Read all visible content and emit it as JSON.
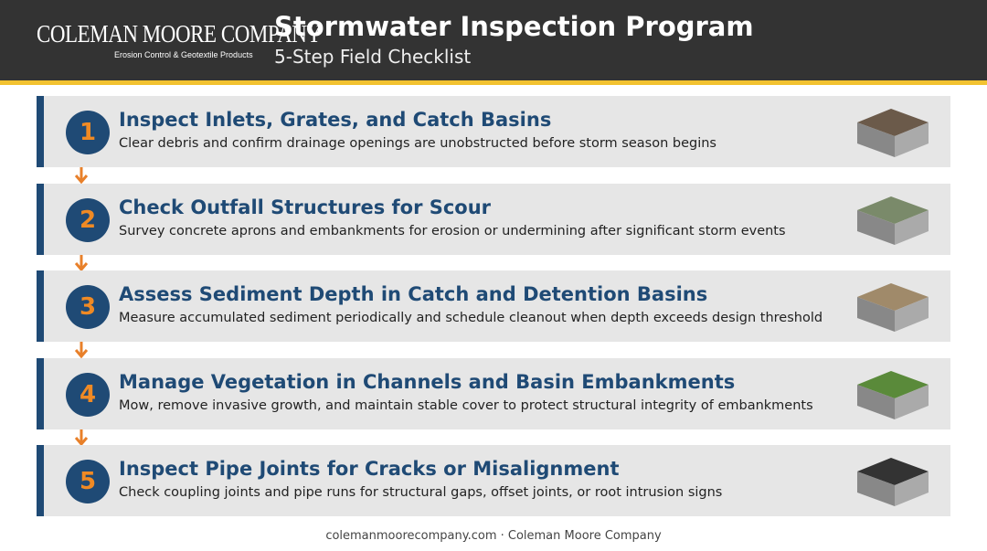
{
  "header": {
    "brand": "COLEMAN MOORE COMPANY",
    "tagline": "Erosion Control & Geotextile Products",
    "title": "Stormwater Inspection Program",
    "subtitle": "5-Step Field Checklist"
  },
  "steps": [
    {
      "number": "1",
      "title": "Inspect Inlets, Grates, and Catch Basins",
      "description": "Clear debris and confirm drainage openings are unobstructed before storm season begins"
    },
    {
      "number": "2",
      "title": "Check Outfall Structures for Scour",
      "description": "Survey concrete aprons and embankments for erosion or undermining after significant storm events"
    },
    {
      "number": "3",
      "title": "Assess Sediment Depth in Catch and Detention Basins",
      "description": "Measure accumulated sediment periodically and schedule cleanout when depth exceeds design threshold"
    },
    {
      "number": "4",
      "title": "Manage Vegetation in Channels and Basin Embankments",
      "description": "Mow, remove invasive growth, and maintain stable cover to protect structural integrity of embankments"
    },
    {
      "number": "5",
      "title": "Inspect Pipe Joints for Cracks or Misalignment",
      "description": "Check coupling joints and pipe runs for structural gaps, offset joints, or root intrusion signs"
    }
  ],
  "footer": "colemanmoorecompany.com · Coleman Moore Company"
}
